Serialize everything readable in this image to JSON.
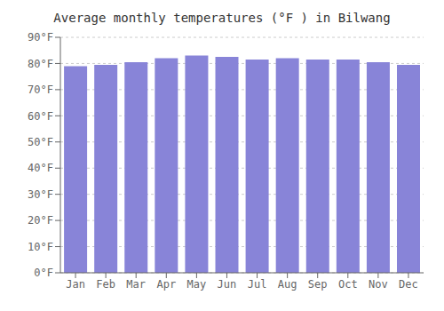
{
  "chart_data": {
    "type": "bar",
    "title": "Average monthly temperatures (°F ) in Bilwang",
    "categories": [
      "Jan",
      "Feb",
      "Mar",
      "Apr",
      "May",
      "Jun",
      "Jul",
      "Aug",
      "Sep",
      "Oct",
      "Nov",
      "Dec"
    ],
    "values": [
      79,
      79.5,
      80.5,
      82,
      83,
      82.5,
      81.5,
      82,
      81.5,
      81.5,
      80.5,
      79.5
    ],
    "ylim": [
      0,
      90
    ],
    "yticks": [
      {
        "value": 0,
        "label": "0°F"
      },
      {
        "value": 10,
        "label": "10°F"
      },
      {
        "value": 20,
        "label": "20°F"
      },
      {
        "value": 30,
        "label": "30°F"
      },
      {
        "value": 40,
        "label": "40°F"
      },
      {
        "value": 50,
        "label": "50°F"
      },
      {
        "value": 60,
        "label": "60°F"
      },
      {
        "value": 70,
        "label": "70°F"
      },
      {
        "value": 80,
        "label": "80°F"
      },
      {
        "value": 90,
        "label": "90°F"
      }
    ],
    "grid": true
  }
}
